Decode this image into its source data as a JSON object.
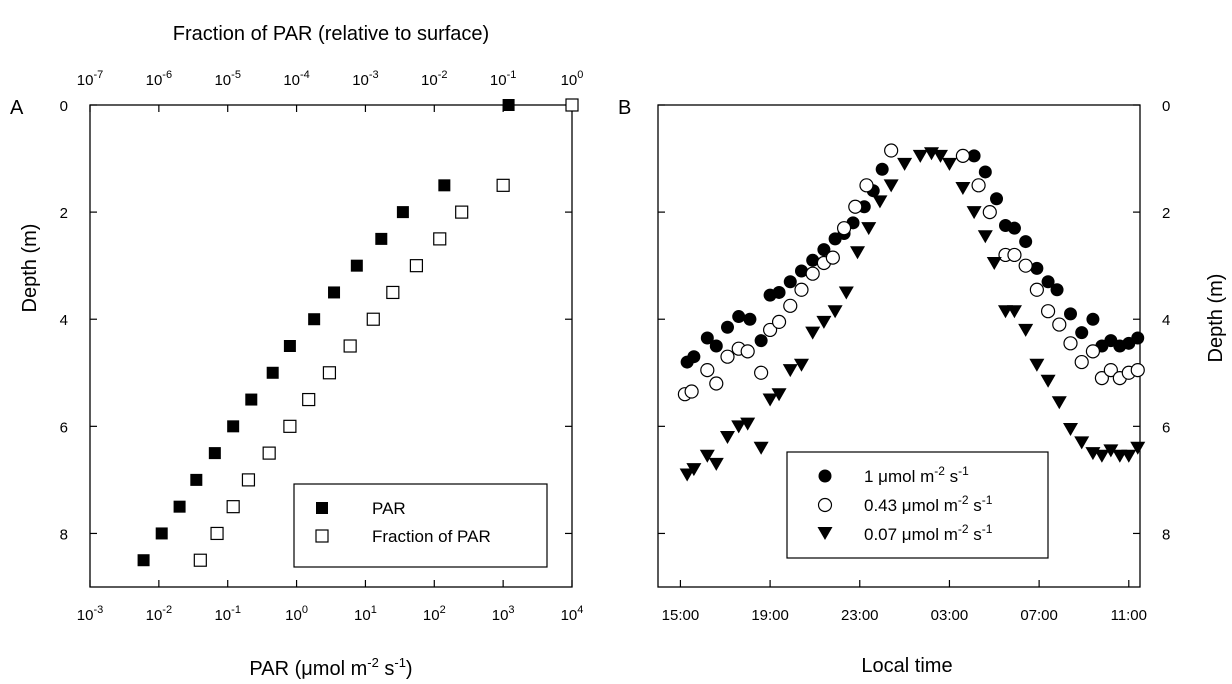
{
  "chart_data": [
    {
      "panel": "A",
      "type": "scatter",
      "xlabel_bottom": "PAR (μmol m⁻² s⁻¹)",
      "xlabel_top": "Fraction of PAR (relative to surface)",
      "ylabel": "Depth (m)",
      "x_bottom": {
        "scale": "log",
        "lim": [
          0.001,
          10000
        ],
        "ticks": [
          0.001,
          0.01,
          0.1,
          1,
          10,
          100,
          1000,
          10000
        ]
      },
      "x_top": {
        "scale": "log",
        "lim": [
          1e-07,
          1
        ],
        "ticks": [
          1e-07,
          1e-06,
          1e-05,
          0.0001,
          0.001,
          0.01,
          0.1,
          1
        ]
      },
      "y": {
        "lim": [
          9,
          0
        ],
        "inverted": true,
        "ticks": [
          0,
          2,
          4,
          6,
          8
        ]
      },
      "legend": {
        "position": "bottom-right"
      },
      "series": [
        {
          "name": "PAR",
          "axis": "bottom",
          "marker": "square-filled",
          "points": [
            [
              1200,
              0
            ],
            [
              140,
              1.5
            ],
            [
              35,
              2
            ],
            [
              17,
              2.5
            ],
            [
              7.5,
              3
            ],
            [
              3.5,
              3.5
            ],
            [
              1.8,
              4
            ],
            [
              0.8,
              4.5
            ],
            [
              0.45,
              5
            ],
            [
              0.22,
              5.5
            ],
            [
              0.12,
              6
            ],
            [
              0.065,
              6.5
            ],
            [
              0.035,
              7
            ],
            [
              0.02,
              7.5
            ],
            [
              0.011,
              8
            ],
            [
              0.006,
              8.5
            ]
          ]
        },
        {
          "name": "Fraction of PAR",
          "axis": "top",
          "marker": "square-open",
          "points": [
            [
              1,
              0
            ],
            [
              0.1,
              1.5
            ],
            [
              0.025,
              2
            ],
            [
              0.012,
              2.5
            ],
            [
              0.0055,
              3
            ],
            [
              0.0025,
              3.5
            ],
            [
              0.0013,
              4
            ],
            [
              0.0006,
              4.5
            ],
            [
              0.0003,
              5
            ],
            [
              0.00015,
              5.5
            ],
            [
              8e-05,
              6
            ],
            [
              4e-05,
              6.5
            ],
            [
              2e-05,
              7
            ],
            [
              1.2e-05,
              7.5
            ],
            [
              7e-06,
              8
            ],
            [
              4e-06,
              8.5
            ]
          ]
        }
      ]
    },
    {
      "panel": "B",
      "type": "scatter",
      "xlabel": "Local time",
      "ylabel": "Depth (m)",
      "x": {
        "lim_hours": [
          14,
          35.5
        ],
        "ticks": [
          15,
          19,
          23,
          27,
          31,
          35
        ],
        "tick_labels": [
          "15:00",
          "19:00",
          "23:00",
          "03:00",
          "07:00",
          "11:00"
        ]
      },
      "y": {
        "lim": [
          9,
          0
        ],
        "inverted": true,
        "ticks": [
          0,
          2,
          4,
          6,
          8
        ]
      },
      "legend": {
        "position": "bottom-center"
      },
      "series": [
        {
          "name": "1 μmol m⁻² s⁻¹",
          "marker": "circle-filled",
          "points": [
            [
              15.3,
              4.8
            ],
            [
              15.6,
              4.7
            ],
            [
              16.2,
              4.35
            ],
            [
              16.6,
              4.5
            ],
            [
              17.1,
              4.15
            ],
            [
              17.6,
              3.95
            ],
            [
              18.1,
              4.0
            ],
            [
              18.6,
              4.4
            ],
            [
              19.0,
              3.55
            ],
            [
              19.4,
              3.5
            ],
            [
              19.9,
              3.3
            ],
            [
              20.4,
              3.1
            ],
            [
              20.9,
              2.9
            ],
            [
              21.4,
              2.7
            ],
            [
              21.9,
              2.5
            ],
            [
              22.3,
              2.4
            ],
            [
              22.7,
              2.2
            ],
            [
              23.2,
              1.9
            ],
            [
              23.6,
              1.6
            ],
            [
              24.0,
              1.2
            ],
            [
              28.1,
              0.95
            ],
            [
              28.6,
              1.25
            ],
            [
              29.1,
              1.75
            ],
            [
              29.5,
              2.25
            ],
            [
              29.9,
              2.3
            ],
            [
              30.4,
              2.55
            ],
            [
              30.9,
              3.05
            ],
            [
              31.4,
              3.3
            ],
            [
              31.8,
              3.45
            ],
            [
              32.4,
              3.9
            ],
            [
              32.9,
              4.25
            ],
            [
              33.4,
              4.0
            ],
            [
              33.8,
              4.5
            ],
            [
              34.2,
              4.4
            ],
            [
              34.6,
              4.5
            ],
            [
              35.0,
              4.45
            ],
            [
              35.4,
              4.35
            ]
          ]
        },
        {
          "name": "0.43 μmol m⁻² s⁻¹",
          "marker": "circle-open",
          "points": [
            [
              15.2,
              5.4
            ],
            [
              15.5,
              5.35
            ],
            [
              16.2,
              4.95
            ],
            [
              16.6,
              5.2
            ],
            [
              17.1,
              4.7
            ],
            [
              17.6,
              4.55
            ],
            [
              18.0,
              4.6
            ],
            [
              18.6,
              5.0
            ],
            [
              19.0,
              4.2
            ],
            [
              19.4,
              4.05
            ],
            [
              19.9,
              3.75
            ],
            [
              20.4,
              3.45
            ],
            [
              20.9,
              3.15
            ],
            [
              21.4,
              2.95
            ],
            [
              21.8,
              2.85
            ],
            [
              22.3,
              2.3
            ],
            [
              22.8,
              1.9
            ],
            [
              23.3,
              1.5
            ],
            [
              24.4,
              0.85
            ],
            [
              27.6,
              0.95
            ],
            [
              28.3,
              1.5
            ],
            [
              28.8,
              2.0
            ],
            [
              29.5,
              2.8
            ],
            [
              29.9,
              2.8
            ],
            [
              30.4,
              3.0
            ],
            [
              30.9,
              3.45
            ],
            [
              31.4,
              3.85
            ],
            [
              31.9,
              4.1
            ],
            [
              32.4,
              4.45
            ],
            [
              32.9,
              4.8
            ],
            [
              33.4,
              4.6
            ],
            [
              33.8,
              5.1
            ],
            [
              34.2,
              4.95
            ],
            [
              34.6,
              5.1
            ],
            [
              35.0,
              5.0
            ],
            [
              35.4,
              4.95
            ]
          ]
        },
        {
          "name": "0.07 μmol m⁻² s⁻¹",
          "marker": "triangle-down-filled",
          "points": [
            [
              15.3,
              6.9
            ],
            [
              15.6,
              6.8
            ],
            [
              16.2,
              6.55
            ],
            [
              16.6,
              6.7
            ],
            [
              17.1,
              6.2
            ],
            [
              17.6,
              6.0
            ],
            [
              18.0,
              5.95
            ],
            [
              18.6,
              6.4
            ],
            [
              19.0,
              5.5
            ],
            [
              19.4,
              5.4
            ],
            [
              19.9,
              4.95
            ],
            [
              20.4,
              4.85
            ],
            [
              20.9,
              4.25
            ],
            [
              21.4,
              4.05
            ],
            [
              21.9,
              3.85
            ],
            [
              22.4,
              3.5
            ],
            [
              22.9,
              2.75
            ],
            [
              23.4,
              2.3
            ],
            [
              23.9,
              1.8
            ],
            [
              24.4,
              1.5
            ],
            [
              25.0,
              1.1
            ],
            [
              25.7,
              0.95
            ],
            [
              26.2,
              0.9
            ],
            [
              26.6,
              0.95
            ],
            [
              27.0,
              1.1
            ],
            [
              27.6,
              1.55
            ],
            [
              28.1,
              2.0
            ],
            [
              28.6,
              2.45
            ],
            [
              29.0,
              2.95
            ],
            [
              29.5,
              3.85
            ],
            [
              29.9,
              3.85
            ],
            [
              30.4,
              4.2
            ],
            [
              30.9,
              4.85
            ],
            [
              31.4,
              5.15
            ],
            [
              31.9,
              5.55
            ],
            [
              32.4,
              6.05
            ],
            [
              32.9,
              6.3
            ],
            [
              33.4,
              6.5
            ],
            [
              33.8,
              6.55
            ],
            [
              34.2,
              6.45
            ],
            [
              34.6,
              6.55
            ],
            [
              35.0,
              6.55
            ],
            [
              35.4,
              6.4
            ]
          ]
        }
      ]
    }
  ]
}
